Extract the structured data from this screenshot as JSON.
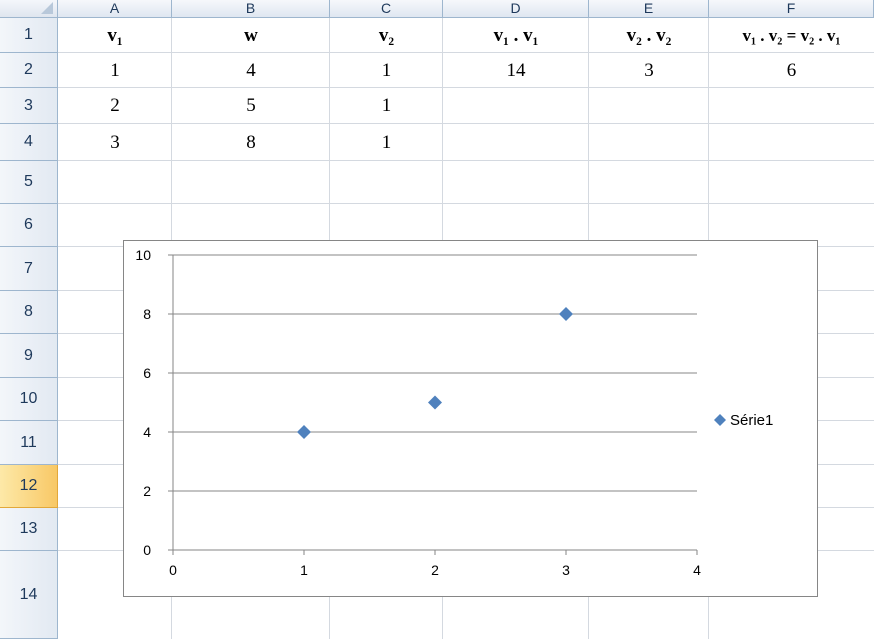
{
  "sheet": {
    "columns": [
      "A",
      "B",
      "C",
      "D",
      "E",
      "F"
    ],
    "rows": [
      "1",
      "2",
      "3",
      "4",
      "5",
      "6",
      "7",
      "8",
      "9",
      "10",
      "11",
      "12",
      "13",
      "14"
    ],
    "selected_row": "12",
    "cells": {
      "row1": [
        "v₁",
        "w",
        "v₂",
        "v₁ . v₁",
        "v₂ . v₂",
        "v₁ . v₂ = v₂ . v₁"
      ],
      "row2": [
        "1",
        "4",
        "1",
        "14",
        "3",
        "6"
      ],
      "row3": [
        "2",
        "5",
        "1",
        "",
        "",
        ""
      ],
      "row4": [
        "3",
        "8",
        "1",
        "",
        "",
        ""
      ]
    }
  },
  "chart_data": {
    "type": "scatter",
    "series": [
      {
        "name": "Série1",
        "x": [
          1,
          2,
          3
        ],
        "y": [
          4,
          5,
          8
        ],
        "marker": "diamond",
        "color": "#4f81bd"
      }
    ],
    "xlim": [
      0,
      4
    ],
    "ylim": [
      0,
      10
    ],
    "x_ticks": [
      0,
      1,
      2,
      3,
      4
    ],
    "y_ticks": [
      0,
      2,
      4,
      6,
      8,
      10
    ],
    "grid": "horizontal major gridlines",
    "legend": "right",
    "gridline_color": "#878787",
    "axis_color": "#868686"
  }
}
